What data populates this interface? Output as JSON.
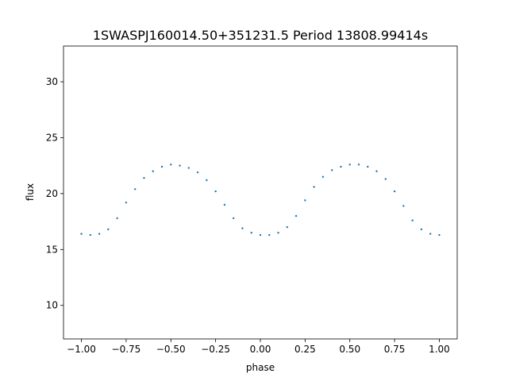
{
  "chart_data": {
    "type": "scatter",
    "title": "1SWASPJ160014.50+351231.5 Period 13808.99414s",
    "xlabel": "phase",
    "ylabel": "flux",
    "xlim": [
      -1.1,
      1.1
    ],
    "ylim": [
      7.0,
      33.2
    ],
    "xticks": [
      -1.0,
      -0.75,
      -0.5,
      -0.25,
      0.0,
      0.25,
      0.5,
      0.75,
      1.0
    ],
    "xtick_labels": [
      "−1.00",
      "−0.75",
      "−0.50",
      "−0.25",
      "0.00",
      "0.25",
      "0.50",
      "0.75",
      "1.00"
    ],
    "yticks": [
      10,
      15,
      20,
      25,
      30
    ],
    "ytick_labels": [
      "10",
      "15",
      "20",
      "25",
      "30"
    ],
    "grid": false,
    "marker_color": "#1f77b4",
    "series": [
      {
        "points": [
          [
            -1.0,
            16.4
          ],
          [
            -0.95,
            16.3
          ],
          [
            -0.9,
            16.4
          ],
          [
            -0.85,
            16.8
          ],
          [
            -0.8,
            17.8
          ],
          [
            -0.75,
            19.2
          ],
          [
            -0.7,
            20.4
          ],
          [
            -0.65,
            21.4
          ],
          [
            -0.6,
            22.0
          ],
          [
            -0.55,
            22.4
          ],
          [
            -0.5,
            22.6
          ],
          [
            -0.45,
            22.5
          ],
          [
            -0.4,
            22.3
          ],
          [
            -0.35,
            21.9
          ],
          [
            -0.3,
            21.2
          ],
          [
            -0.25,
            20.2
          ],
          [
            -0.2,
            19.0
          ],
          [
            -0.15,
            17.8
          ],
          [
            -0.1,
            16.9
          ],
          [
            -0.05,
            16.5
          ],
          [
            0.0,
            16.3
          ],
          [
            0.05,
            16.3
          ],
          [
            0.1,
            16.5
          ],
          [
            0.15,
            17.0
          ],
          [
            0.2,
            18.0
          ],
          [
            0.25,
            19.4
          ],
          [
            0.3,
            20.6
          ],
          [
            0.35,
            21.5
          ],
          [
            0.4,
            22.1
          ],
          [
            0.45,
            22.4
          ],
          [
            0.5,
            22.6
          ],
          [
            0.55,
            22.6
          ],
          [
            0.6,
            22.4
          ],
          [
            0.65,
            22.0
          ],
          [
            0.7,
            21.3
          ],
          [
            0.75,
            20.2
          ],
          [
            0.8,
            18.9
          ],
          [
            0.85,
            17.6
          ],
          [
            0.9,
            16.8
          ],
          [
            0.95,
            16.4
          ],
          [
            1.0,
            16.3
          ]
        ]
      }
    ]
  }
}
